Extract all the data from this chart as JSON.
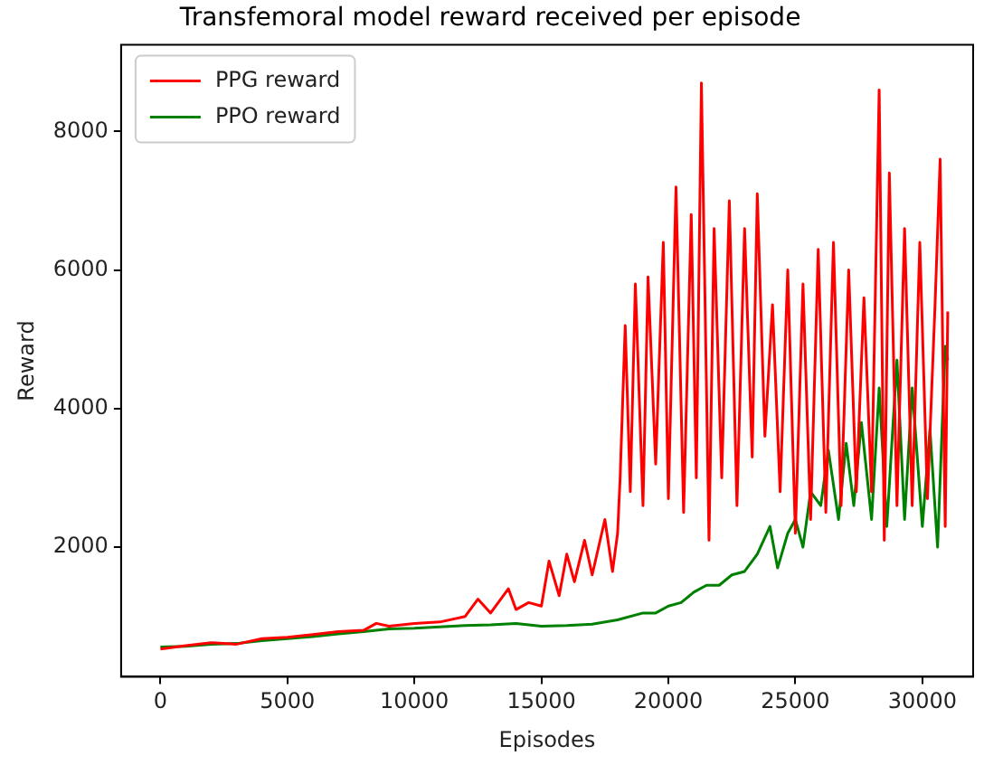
{
  "chart_data": {
    "type": "line",
    "title": "Transfemoral model reward received per episode",
    "xlabel": "Episodes",
    "ylabel": "Reward",
    "xlim": [
      -1550,
      32000
    ],
    "ylim": [
      130,
      9250
    ],
    "xticks": [
      0,
      5000,
      10000,
      15000,
      20000,
      25000,
      30000
    ],
    "yticks": [
      2000,
      4000,
      6000,
      8000
    ],
    "legend": "top left",
    "grid": false,
    "marker": "none",
    "line_style": "solid",
    "series": [
      {
        "name": "PPG reward",
        "color": "#ff0000",
        "x": [
          0,
          1000,
          2000,
          3000,
          4000,
          5000,
          6000,
          7000,
          8000,
          8500,
          9000,
          10000,
          11000,
          12000,
          12500,
          13000,
          13700,
          14000,
          14500,
          15000,
          15300,
          15700,
          16000,
          16300,
          16700,
          17000,
          17500,
          17800,
          18000,
          18100,
          18300,
          18500,
          18700,
          19000,
          19200,
          19500,
          19800,
          20000,
          20300,
          20600,
          20900,
          21100,
          21300,
          21600,
          21800,
          22100,
          22400,
          22700,
          23000,
          23300,
          23500,
          23800,
          24100,
          24400,
          24700,
          25000,
          25300,
          25600,
          25900,
          26200,
          26500,
          26800,
          27100,
          27400,
          27700,
          28000,
          28300,
          28500,
          28700,
          29000,
          29300,
          29600,
          29900,
          30200,
          30500,
          30700,
          30900,
          31000
        ],
        "values": [
          530,
          580,
          620,
          600,
          680,
          700,
          740,
          780,
          800,
          900,
          860,
          900,
          920,
          1000,
          1250,
          1050,
          1400,
          1100,
          1200,
          1150,
          1800,
          1300,
          1900,
          1500,
          2100,
          1600,
          2400,
          1650,
          2200,
          3000,
          5200,
          2800,
          5800,
          2600,
          5900,
          3200,
          6400,
          2700,
          7200,
          2500,
          6800,
          3000,
          8700,
          2100,
          6600,
          3000,
          7000,
          2600,
          6600,
          3300,
          7100,
          3600,
          5500,
          2800,
          6000,
          2200,
          5800,
          2400,
          6300,
          2500,
          6400,
          2600,
          6000,
          2800,
          5600,
          2800,
          8600,
          2100,
          7400,
          2600,
          6600,
          2600,
          6400,
          2700,
          5500,
          7600,
          2300,
          5400
        ]
      },
      {
        "name": "PPO reward",
        "color": "#008000",
        "x": [
          0,
          1000,
          2000,
          3000,
          4000,
          5000,
          6000,
          7000,
          8000,
          9000,
          10000,
          11000,
          12000,
          13000,
          14000,
          15000,
          16000,
          17000,
          18000,
          19000,
          19500,
          20000,
          20500,
          21000,
          21500,
          22000,
          22500,
          23000,
          23500,
          24000,
          24300,
          24700,
          25000,
          25300,
          25600,
          26000,
          26300,
          26700,
          27000,
          27300,
          27600,
          28000,
          28300,
          28600,
          29000,
          29300,
          29600,
          30000,
          30300,
          30600,
          30900,
          31000
        ],
        "values": [
          560,
          570,
          600,
          610,
          650,
          680,
          710,
          750,
          780,
          820,
          830,
          850,
          870,
          880,
          900,
          860,
          870,
          890,
          950,
          1050,
          1050,
          1150,
          1200,
          1350,
          1450,
          1450,
          1600,
          1650,
          1900,
          2300,
          1700,
          2200,
          2400,
          2000,
          2800,
          2600,
          3400,
          2400,
          3500,
          2600,
          3800,
          2400,
          4300,
          2300,
          4700,
          2400,
          4300,
          2300,
          3700,
          2000,
          4900,
          4700
        ]
      }
    ]
  }
}
